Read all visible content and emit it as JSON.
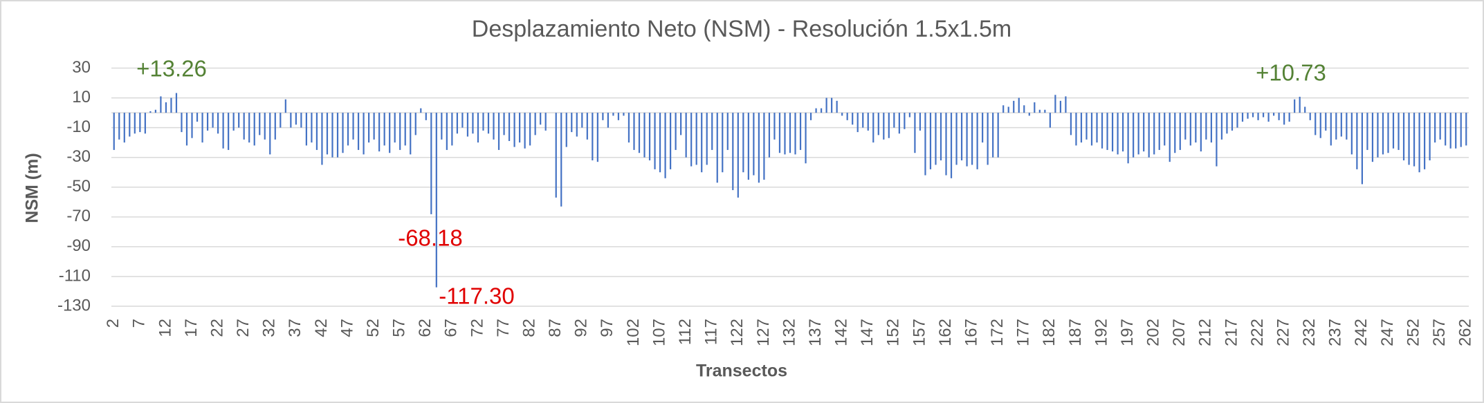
{
  "chart_data": {
    "type": "bar",
    "title": "Desplazamiento Neto (NSM) - Resolución 1.5x1.5m",
    "x_label": "Transectos",
    "y_label": "NSM (m)",
    "color": "#4472c4",
    "grid": true,
    "ylim": [
      -130,
      30
    ],
    "yticks": [
      30,
      10,
      -10,
      -30,
      -50,
      -70,
      -90,
      -110,
      -130
    ],
    "annotations": [
      {
        "text": "+13.26",
        "color": "#548235"
      },
      {
        "text": "-68.18",
        "color": "#e00000"
      },
      {
        "text": "-117.30",
        "color": "#e00000"
      },
      {
        "text": "+10.73",
        "color": "#548235"
      }
    ],
    "categories": [
      2,
      null,
      null,
      null,
      null,
      7,
      null,
      null,
      null,
      null,
      12,
      null,
      null,
      null,
      null,
      17,
      null,
      null,
      null,
      null,
      22,
      null,
      null,
      null,
      null,
      27,
      null,
      null,
      null,
      null,
      32,
      null,
      null,
      null,
      null,
      37,
      null,
      null,
      null,
      null,
      42,
      null,
      null,
      null,
      null,
      47,
      null,
      null,
      null,
      null,
      52,
      null,
      null,
      null,
      null,
      57,
      null,
      null,
      null,
      null,
      62,
      null,
      null,
      null,
      null,
      67,
      null,
      null,
      null,
      null,
      72,
      null,
      null,
      null,
      null,
      77,
      null,
      null,
      null,
      null,
      82,
      null,
      null,
      null,
      null,
      87,
      null,
      null,
      null,
      null,
      92,
      null,
      null,
      null,
      null,
      97,
      null,
      null,
      null,
      null,
      102,
      null,
      null,
      null,
      null,
      107,
      null,
      null,
      null,
      null,
      112,
      null,
      null,
      null,
      null,
      117,
      null,
      null,
      null,
      null,
      122,
      null,
      null,
      null,
      null,
      127,
      null,
      null,
      null,
      null,
      132,
      null,
      null,
      null,
      null,
      137,
      null,
      null,
      null,
      null,
      142,
      null,
      null,
      null,
      null,
      147,
      null,
      null,
      null,
      null,
      152,
      null,
      null,
      null,
      null,
      157,
      null,
      null,
      null,
      null,
      162,
      null,
      null,
      null,
      null,
      167,
      null,
      null,
      null,
      null,
      172,
      null,
      null,
      null,
      null,
      177,
      null,
      null,
      null,
      null,
      182,
      null,
      null,
      null,
      null,
      187,
      null,
      null,
      null,
      null,
      192,
      null,
      null,
      null,
      null,
      197,
      null,
      null,
      null,
      null,
      202,
      null,
      null,
      null,
      null,
      207,
      null,
      null,
      null,
      null,
      212,
      null,
      null,
      null,
      null,
      217,
      null,
      null,
      null,
      null,
      222,
      null,
      null,
      null,
      null,
      227,
      null,
      null,
      null,
      null,
      232,
      null,
      null,
      null,
      null,
      237,
      null,
      null,
      null,
      null,
      242,
      null,
      null,
      null,
      null,
      247,
      null,
      null,
      null,
      null,
      252,
      null,
      null,
      null,
      null,
      257,
      null,
      null,
      null,
      null,
      262
    ],
    "values": [
      -25,
      -18,
      -20,
      -16,
      -14,
      -13,
      -14,
      1,
      2,
      11,
      7,
      10,
      13.26,
      -13,
      -22,
      -17,
      -6,
      -20,
      -12,
      -10,
      -14,
      -24,
      -25,
      -12,
      -10,
      -18,
      -20,
      -22,
      -15,
      -18,
      -28,
      -18,
      -10,
      9,
      -10,
      -8,
      -10,
      -22,
      -20,
      -25,
      -35,
      -28,
      -30,
      -30,
      -27,
      -22,
      -18,
      -25,
      -28,
      -20,
      -18,
      -26,
      -22,
      -27,
      -20,
      -25,
      -22,
      -28,
      -15,
      3,
      -5,
      -68.18,
      -117.3,
      -18,
      -25,
      -22,
      -14,
      -10,
      -16,
      -14,
      -20,
      -12,
      -14,
      -18,
      -25,
      -15,
      -19,
      -23,
      -20,
      -24,
      -22,
      -15,
      -8,
      -12,
      0,
      -57,
      -63,
      -23,
      -13,
      -16,
      -10,
      -18,
      -32,
      -33,
      -5,
      -10,
      -2,
      -5,
      -2,
      -20,
      -25,
      -27,
      -30,
      -32,
      -38,
      -40,
      -44,
      -38,
      -25,
      -15,
      -30,
      -36,
      -35,
      -40,
      -35,
      -25,
      -47,
      -40,
      -25,
      -52,
      -57,
      -40,
      -45,
      -42,
      -47,
      -45,
      -30,
      -18,
      -27,
      -28,
      -27,
      -28,
      -25,
      -34,
      -5,
      3,
      3,
      10,
      10,
      8,
      -2,
      -5,
      -8,
      -13,
      -10,
      -12,
      -20,
      -15,
      -18,
      -17,
      -10,
      -14,
      -11,
      -3,
      -27,
      -12,
      -42,
      -38,
      -35,
      -32,
      -42,
      -44,
      -35,
      -32,
      -36,
      -35,
      -38,
      -20,
      -35,
      -30,
      -30,
      5,
      4,
      8,
      10,
      5,
      -2,
      7,
      2,
      2,
      -10,
      12,
      8,
      11,
      -15,
      -22,
      -20,
      -18,
      -22,
      -20,
      -24,
      -25,
      -26,
      -28,
      -26,
      -34,
      -30,
      -28,
      -26,
      -30,
      -28,
      -25,
      -22,
      -33,
      -27,
      -25,
      -18,
      -22,
      -20,
      -26,
      -18,
      -20,
      -36,
      -18,
      -14,
      -12,
      -10,
      -6,
      -4,
      -3,
      -5,
      -3,
      -6,
      -2,
      -5,
      -8,
      -6,
      9,
      10.73,
      4,
      -5,
      -15,
      -17,
      -12,
      -22,
      -18,
      -16,
      -18,
      -28,
      -38,
      -48,
      -25,
      -33,
      -30,
      -28,
      -27,
      -24,
      -25,
      -32,
      -35,
      -36,
      -40,
      -38,
      -32,
      -20,
      -18,
      -22,
      -24,
      -24,
      -23,
      -22
    ]
  }
}
